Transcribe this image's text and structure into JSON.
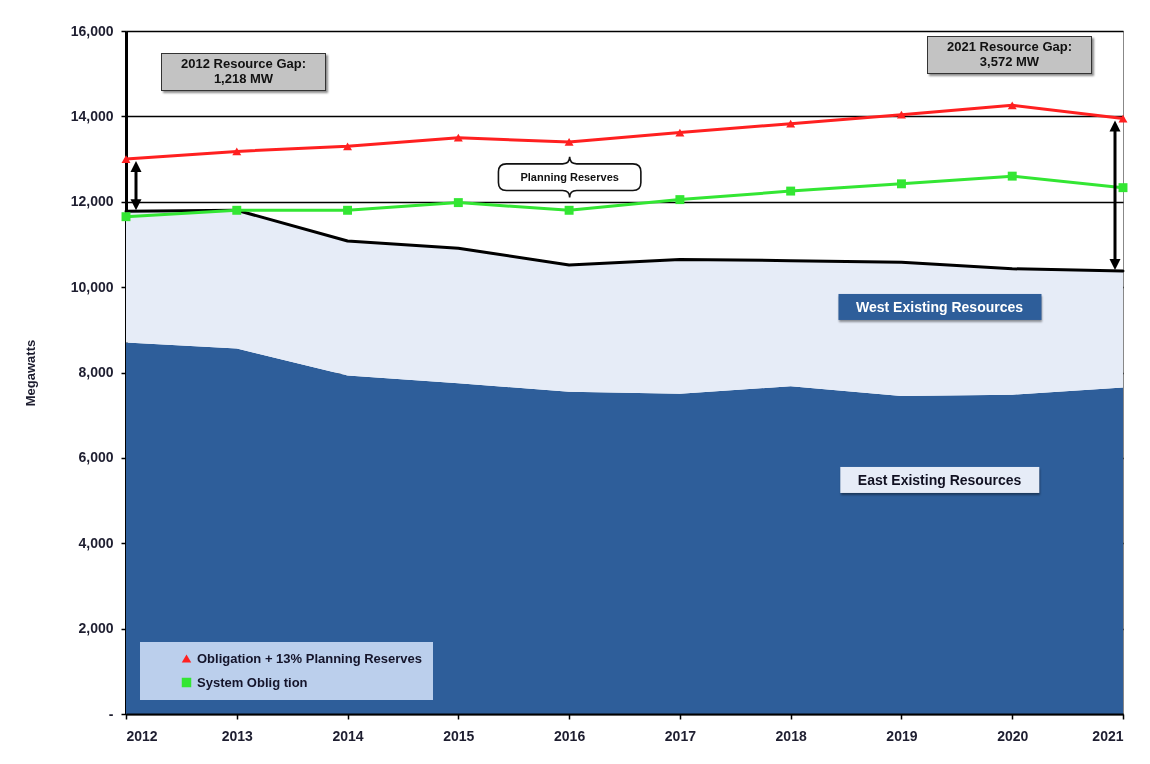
{
  "chart_data": {
    "type": "area",
    "ylabel": "Megawatts",
    "x": [
      2012,
      2013,
      2014,
      2015,
      2016,
      2017,
      2018,
      2019,
      2020,
      2021
    ],
    "xlim": [
      2012,
      2021
    ],
    "xticks": [
      2012,
      2013,
      2014,
      2015,
      2016,
      2017,
      2018,
      2019,
      2020,
      2021
    ],
    "ylim": [
      0,
      16000
    ],
    "yticks": [
      {
        "value": 0,
        "label": "-"
      },
      {
        "value": 2000,
        "label": "2,000"
      },
      {
        "value": 4000,
        "label": "4,000"
      },
      {
        "value": 6000,
        "label": "6,000"
      },
      {
        "value": 8000,
        "label": "8,000"
      },
      {
        "value": 10000,
        "label": "10,000"
      },
      {
        "value": 12000,
        "label": "12,000"
      },
      {
        "value": 14000,
        "label": "14,000"
      },
      {
        "value": 16000,
        "label": "16,000"
      }
    ],
    "stacked": true,
    "grid": "y",
    "legend": "bottom left",
    "series": [
      {
        "name": "East Existing Resources",
        "color": "#2e5e9a",
        "values": [
          8700,
          8560,
          7930,
          7750,
          7550,
          7500,
          7680,
          7450,
          7480,
          7650
        ]
      },
      {
        "name": "West Existing Resources",
        "color": "#e6ecf7",
        "values": [
          3080,
          3240,
          3150,
          3160,
          2970,
          3150,
          2940,
          3130,
          2950,
          2730
        ]
      },
      {
        "type": "line",
        "name": "Obligation + 13% Planning Reserves",
        "color": "#ff2020",
        "marker": "triangle",
        "values": [
          13000,
          13180,
          13300,
          13500,
          13400,
          13620,
          13830,
          14040,
          14260,
          13950
        ]
      },
      {
        "type": "line",
        "name": "System Oblig tion",
        "color": "#33e633",
        "marker": "square",
        "values": [
          11650,
          11800,
          11800,
          11980,
          11800,
          12050,
          12250,
          12420,
          12600,
          12330
        ]
      }
    ],
    "annotations": [
      "2012 Resource Gap:\n1,218 MW",
      "2021 Resource Gap:\n3,572 MW",
      "Planning Reserves"
    ]
  }
}
